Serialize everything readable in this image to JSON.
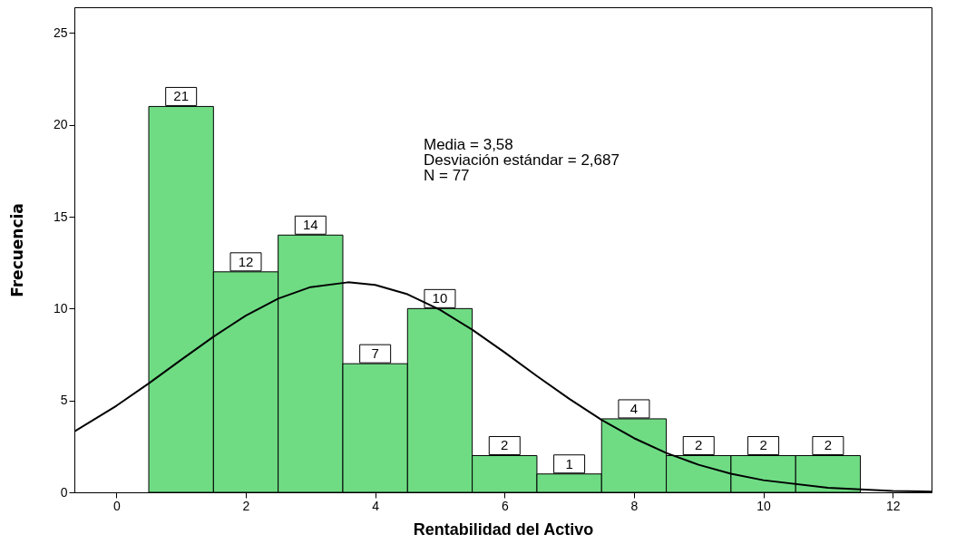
{
  "chart_data": {
    "type": "histogram",
    "xlabel": "Rentabilidad del Activo",
    "ylabel": "Frecuencia",
    "xlim": [
      -0.65,
      12.6
    ],
    "ylim": [
      0,
      26.4
    ],
    "xticks": [
      0,
      2,
      4,
      6,
      8,
      10,
      12
    ],
    "yticks": [
      0,
      5,
      10,
      15,
      20,
      25
    ],
    "annotations": [
      "Media = 3,58",
      "Desviación estándar = 2,687",
      "N = 77"
    ],
    "series": [
      {
        "color": "#6fdc84",
        "value_labels": [
          "21",
          "12",
          "14",
          "7",
          "10",
          "2",
          "1",
          "4",
          "2",
          "2",
          "2"
        ],
        "bins": [
          0.5,
          1.5,
          2.5,
          3.5,
          4.5,
          5.5,
          6.5,
          7.5,
          8.5,
          9.5,
          10.5,
          11.5
        ],
        "values": [
          21,
          12,
          14,
          7,
          10,
          2,
          1,
          4,
          2,
          2,
          2
        ]
      },
      {
        "type": "line",
        "color": "#000000",
        "x": [
          -0.65,
          0,
          0.5,
          1,
          1.5,
          2,
          2.5,
          3,
          3.58,
          4,
          4.5,
          5,
          5.5,
          6,
          6.5,
          7,
          7.5,
          8,
          8.5,
          9,
          9.5,
          10,
          11,
          12,
          12.6
        ],
        "values": [
          3.31,
          4.71,
          5.93,
          7.21,
          8.47,
          9.62,
          10.54,
          11.17,
          11.43,
          11.29,
          10.78,
          9.94,
          8.85,
          7.62,
          6.33,
          5.09,
          3.94,
          2.95,
          2.14,
          1.5,
          1.01,
          0.66,
          0.25,
          0.08,
          0.04
        ]
      }
    ]
  }
}
